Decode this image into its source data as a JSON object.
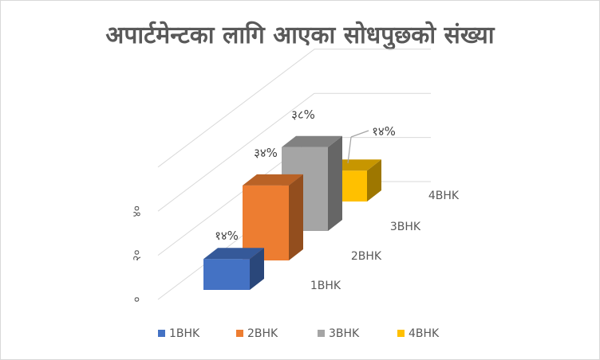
{
  "chart_data": {
    "type": "bar",
    "title": "अपार्टमेन्टका लागि आएका सोधपुछको संख्या",
    "categories": [
      "1BHK",
      "2BHK",
      "3BHK",
      "4BHK"
    ],
    "values": [
      14,
      34,
      38,
      14
    ],
    "data_labels": [
      "१४%",
      "३४%",
      "३८%",
      "१४%"
    ],
    "yticks": [
      "०",
      "२०",
      "४०"
    ],
    "ylim": [
      0,
      60
    ],
    "colors": [
      "#4472c4",
      "#ed7d31",
      "#a5a5a5",
      "#ffc000"
    ],
    "legend": [
      "1BHK",
      "2BHK",
      "3BHK",
      "4BHK"
    ],
    "legend_position": "bottom",
    "grid": true,
    "style": "3d-column"
  }
}
